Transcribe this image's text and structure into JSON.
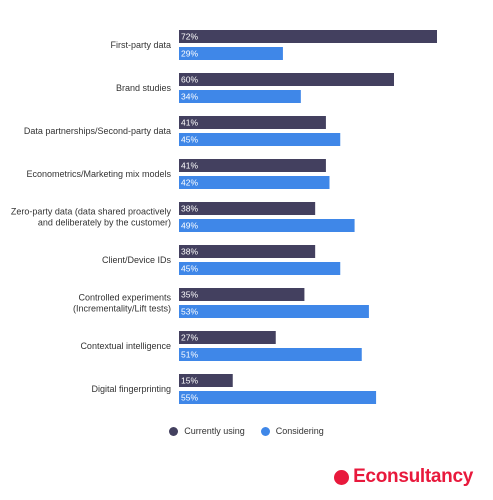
{
  "chart_data": {
    "type": "bar",
    "orientation": "horizontal",
    "categories": [
      [
        "First-party data"
      ],
      [
        "Brand studies"
      ],
      [
        "Data partnerships/Second-party data"
      ],
      [
        "Econometrics/Marketing mix models"
      ],
      [
        "Zero-party data (data shared proactively",
        "and deliberately by the customer)"
      ],
      [
        "Client/Device IDs"
      ],
      [
        "Controlled experiments",
        "(Incrementality/Lift tests)"
      ],
      [
        "Contextual intelligence"
      ],
      [
        "Digital fingerprinting"
      ]
    ],
    "series": [
      {
        "name": "Currently using",
        "color": "#43405f",
        "values": [
          72,
          60,
          41,
          41,
          38,
          38,
          35,
          27,
          15
        ]
      },
      {
        "name": "Considering",
        "color": "#3f87e8",
        "values": [
          29,
          34,
          45,
          42,
          49,
          45,
          53,
          51,
          55
        ]
      }
    ],
    "value_suffix": "%",
    "xlim": [
      0,
      72
    ],
    "grid": false,
    "legend_position": "bottom"
  },
  "brand": {
    "name": "Econsultancy",
    "color": "#e8193c"
  }
}
